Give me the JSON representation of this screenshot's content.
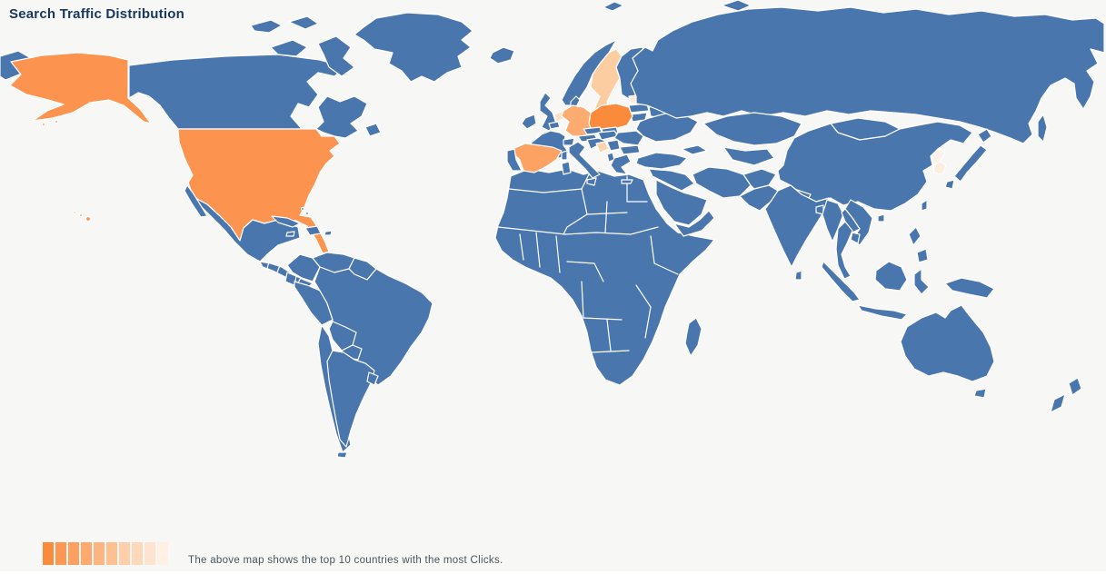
{
  "page": {
    "title": "Search Traffic Distribution",
    "title_color": "#17375e",
    "background_color": "#f7f7f5"
  },
  "map": {
    "ocean_color": "#f7f7f5",
    "border_color": "#ffffff",
    "default_country_color": "#4a76ae",
    "highlights": [
      {
        "key": "poland",
        "country": "Poland",
        "color": "#fa8b3c"
      },
      {
        "key": "united-states",
        "country": "United States",
        "color": "#fc9450"
      },
      {
        "key": "spain",
        "country": "Spain",
        "color": "#fca263"
      },
      {
        "key": "germany",
        "country": "Germany",
        "color": "#fcab71"
      },
      {
        "key": "sweden",
        "country": "Sweden",
        "color": "#fbcda1"
      },
      {
        "key": "bosnia-and-herzegovina",
        "country": "Bosnia and Herzegovina",
        "color": "#fdd3ae"
      },
      {
        "key": "netherlands",
        "country": "Netherlands",
        "color": "#fde2c8"
      },
      {
        "key": "estonia",
        "country": "Estonia",
        "color": "#fde8d5"
      },
      {
        "key": "south-korea",
        "country": "South Korea",
        "color": "#fcedde"
      },
      {
        "key": "north-korea",
        "country": "North Korea",
        "color": "#fdf2e9"
      }
    ]
  },
  "legend": {
    "swatch_colors": [
      "#fa8b3c",
      "#fc9853",
      "#fca061",
      "#fdaa70",
      "#fdb681",
      "#fdc091",
      "#fecfaa",
      "#fed8bb",
      "#fee4d0",
      "#fff0e3"
    ],
    "caption": "The above map shows the top 10 countries with the most Clicks."
  }
}
